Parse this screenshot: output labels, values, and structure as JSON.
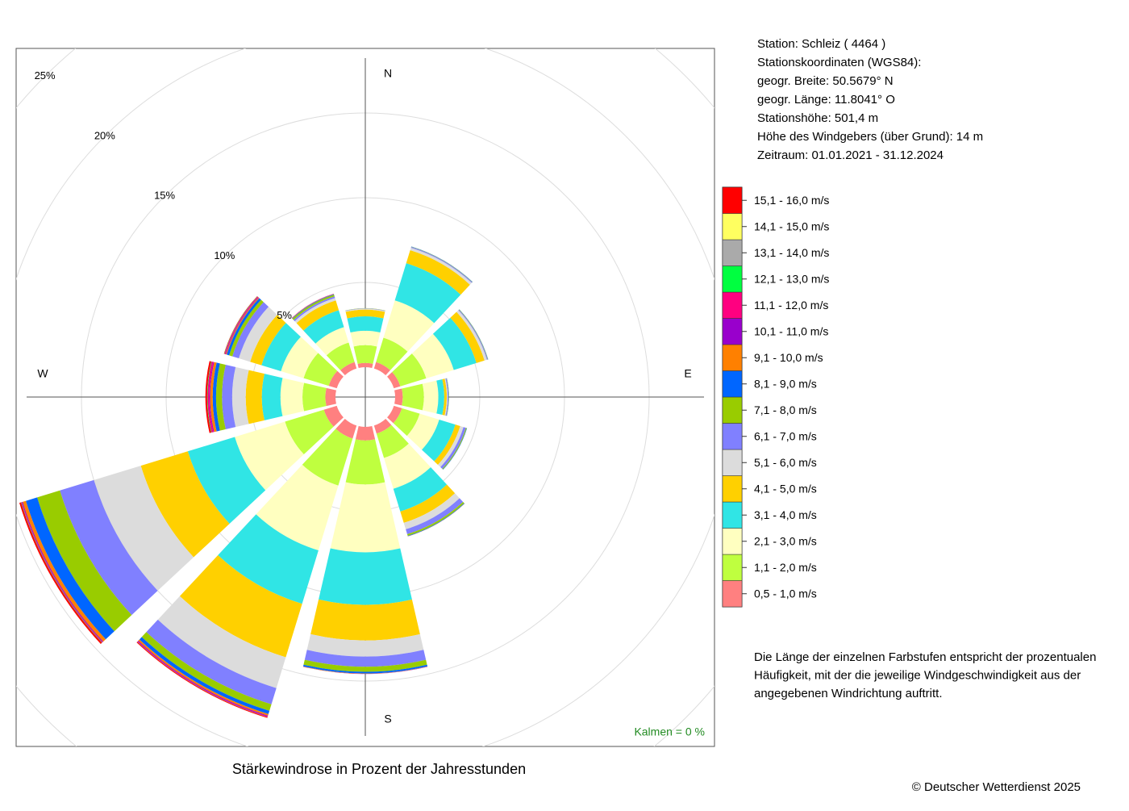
{
  "chart_data": {
    "type": "windrose",
    "title": "Stärkewindrose in Prozent der Jahresstunden",
    "categories": [
      "N",
      null,
      null,
      "E",
      null,
      null,
      "S",
      null,
      null,
      "W",
      null,
      null
    ],
    "series": [
      {
        "name": "0,5 - 1,0 m/s",
        "color": "#ff8080",
        "values": [
          0.25,
          0.4,
          0.4,
          0.45,
          0.5,
          0.5,
          0.8,
          0.8,
          0.8,
          0.6,
          0.5,
          0.4
        ]
      },
      {
        "name": "1,1 - 2,0 m/s",
        "color": "#bfff3f",
        "values": [
          1.05,
          1.5,
          1.6,
          1.25,
          1.1,
          1.5,
          2.6,
          2.9,
          2.4,
          1.35,
          1.55,
          1.2
        ]
      },
      {
        "name": "2,1 - 3,0 m/s",
        "color": "#ffffc0",
        "values": [
          0.85,
          2.3,
          1.7,
          0.85,
          1.2,
          1.9,
          4.0,
          4.0,
          3.1,
          1.3,
          1.4,
          0.95
        ]
      },
      {
        "name": "3,1 - 4,0 m/s",
        "color": "#30e5e5",
        "values": [
          0.85,
          2.3,
          1.4,
          0.35,
          1.0,
          1.4,
          3.1,
          3.3,
          2.9,
          1.1,
          1.2,
          1.05
        ]
      },
      {
        "name": "4,1 - 5,0 m/s",
        "color": "#ffd000",
        "values": [
          0.4,
          0.8,
          0.5,
          0.15,
          0.3,
          0.7,
          2.1,
          3.3,
          2.9,
          0.95,
          0.7,
          0.6
        ]
      },
      {
        "name": "5,1 - 6,0 m/s",
        "color": "#dcdcdc",
        "values": [
          0.05,
          0.15,
          0.15,
          0.05,
          0.2,
          0.4,
          0.95,
          1.9,
          2.9,
          0.8,
          0.7,
          0.15
        ]
      },
      {
        "name": "6,1 - 7,0 m/s",
        "color": "#8080ff",
        "values": [
          0.02,
          0.05,
          0.05,
          0.05,
          0.15,
          0.3,
          0.6,
          1.0,
          2.1,
          0.6,
          0.4,
          0.1
        ]
      },
      {
        "name": "7,1 - 8,0 m/s",
        "color": "#99cc00",
        "values": [
          0.01,
          0.02,
          0.02,
          0.02,
          0.05,
          0.1,
          0.3,
          0.4,
          1.4,
          0.35,
          0.2,
          0.1
        ]
      },
      {
        "name": "8,1 - 9,0 m/s",
        "color": "#0066ff",
        "values": [
          0,
          0.01,
          0.01,
          0.01,
          0.02,
          0.03,
          0.1,
          0.2,
          0.7,
          0.2,
          0.15,
          0.03
        ]
      },
      {
        "name": "9,1 - 10,0 m/s",
        "color": "#ff8000",
        "values": [
          0,
          0,
          0,
          0,
          0,
          0.01,
          0.02,
          0.1,
          0.2,
          0.15,
          0.05,
          0.02
        ]
      },
      {
        "name": "10,1 - 11,0 m/s",
        "color": "#9900cc",
        "values": [
          0,
          0,
          0,
          0,
          0,
          0,
          0.01,
          0.05,
          0.05,
          0.05,
          0.03,
          0.01
        ]
      },
      {
        "name": "11,1 - 12,0 m/s",
        "color": "#ff0080",
        "values": [
          0,
          0,
          0,
          0,
          0,
          0,
          0,
          0.03,
          0.03,
          0.1,
          0.05,
          0.01
        ]
      },
      {
        "name": "12,1 - 13,0 m/s",
        "color": "#00ff40",
        "values": [
          0,
          0,
          0,
          0,
          0,
          0,
          0,
          0.01,
          0.02,
          0.03,
          0.02,
          0
        ]
      },
      {
        "name": "13,1 - 14,0 m/s",
        "color": "#aaaaaa",
        "values": [
          0,
          0,
          0,
          0,
          0,
          0,
          0,
          0,
          0,
          0,
          0,
          0
        ]
      },
      {
        "name": "14,1 - 15,0 m/s",
        "color": "#ffff60",
        "values": [
          0,
          0,
          0,
          0,
          0,
          0,
          0,
          0,
          0,
          0,
          0,
          0
        ]
      },
      {
        "name": "15,1 - 16,0 m/s",
        "color": "#ff0000",
        "values": [
          0,
          0,
          0,
          0,
          0,
          0,
          0,
          0.05,
          0.1,
          0.1,
          0.02,
          0
        ]
      }
    ],
    "rlim": [
      0,
      25
    ],
    "rticks": [
      {
        "value": 5,
        "label": "5%"
      },
      {
        "value": 10,
        "label": "10%"
      },
      {
        "value": 15,
        "label": "15%"
      },
      {
        "value": 20,
        "label": "20%"
      },
      {
        "value": 25,
        "label": "25%"
      }
    ],
    "grid": true,
    "calm_label": "Kalmen  =  0 %"
  },
  "station_info": [
    "Station:  Schleiz  ( 4464 )",
    "Stationskoordinaten (WGS84):",
    "geogr. Breite: 50.5679° N",
    "geogr. Länge: 11.8041° O",
    "Stationshöhe: 501,4 m",
    "Höhe des Windgebers (über Grund): 14 m",
    "Zeitraum: 01.01.2021 - 31.12.2024"
  ],
  "note": [
    "Die Länge der einzelnen Farbstufen entspricht der prozentualen",
    "Häufigkeit, mit der die jeweilige Windgeschwindigkeit aus der",
    "angegebenen Windrichtung auftritt."
  ],
  "copyright": "© Deutscher Wetterdienst  2025"
}
